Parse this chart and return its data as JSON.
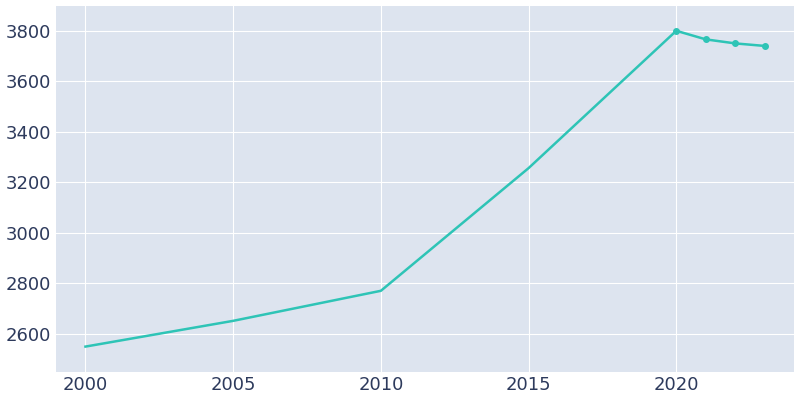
{
  "years": [
    2000,
    2005,
    2010,
    2015,
    2020,
    2021,
    2022,
    2023
  ],
  "population": [
    2549,
    2651,
    2770,
    3256,
    3800,
    3766,
    3750,
    3740
  ],
  "line_color": "#2ec4b6",
  "marker_years": [
    2020,
    2021,
    2022,
    2023
  ],
  "background_color": "#dde4ef",
  "figure_color": "#ffffff",
  "grid_color": "#ffffff",
  "tick_color": "#2d3a5c",
  "xlim": [
    1999,
    2024
  ],
  "ylim": [
    2450,
    3900
  ],
  "yticks": [
    2600,
    2800,
    3000,
    3200,
    3400,
    3600,
    3800
  ],
  "xticks": [
    2000,
    2005,
    2010,
    2015,
    2020
  ],
  "tick_fontsize": 13,
  "linewidth": 1.8,
  "markersize": 4
}
